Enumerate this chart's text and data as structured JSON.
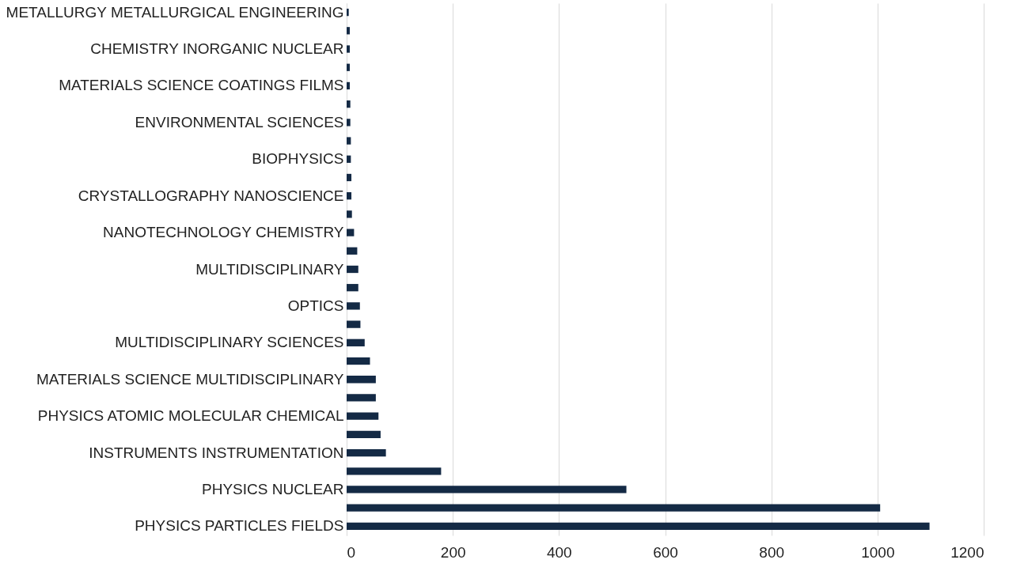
{
  "chart_data": {
    "type": "bar",
    "orientation": "horizontal",
    "color": "#142a45",
    "categories": [
      "METALLURGY METALLURGICAL ENGINEERING",
      null,
      "CHEMISTRY INORGANIC NUCLEAR",
      null,
      "MATERIALS SCIENCE COATINGS FILMS",
      null,
      "ENVIRONMENTAL SCIENCES",
      null,
      "BIOPHYSICS",
      null,
      "CRYSTALLOGRAPHY NANOSCIENCE",
      null,
      "NANOTECHNOLOGY CHEMISTRY",
      null,
      "MULTIDISCIPLINARY",
      null,
      "OPTICS",
      null,
      "MULTIDISCIPLINARY SCIENCES",
      null,
      "MATERIALS SCIENCE MULTIDISCIPLINARY",
      null,
      "PHYSICS ATOMIC MOLECULAR CHEMICAL",
      null,
      "INSTRUMENTS INSTRUMENTATION",
      null,
      "PHYSICS NUCLEAR",
      null,
      "PHYSICS PARTICLES FIELDS"
    ],
    "values": [
      4,
      6,
      6,
      6,
      6,
      7,
      7,
      8,
      8,
      9,
      9,
      10,
      14,
      20,
      22,
      22,
      25,
      26,
      34,
      44,
      55,
      55,
      60,
      64,
      74,
      178,
      527,
      1005,
      1098
    ],
    "xlim": [
      0,
      1200
    ],
    "xticks": [
      0,
      200,
      400,
      600,
      800,
      1000,
      1200
    ],
    "grid": "x"
  }
}
